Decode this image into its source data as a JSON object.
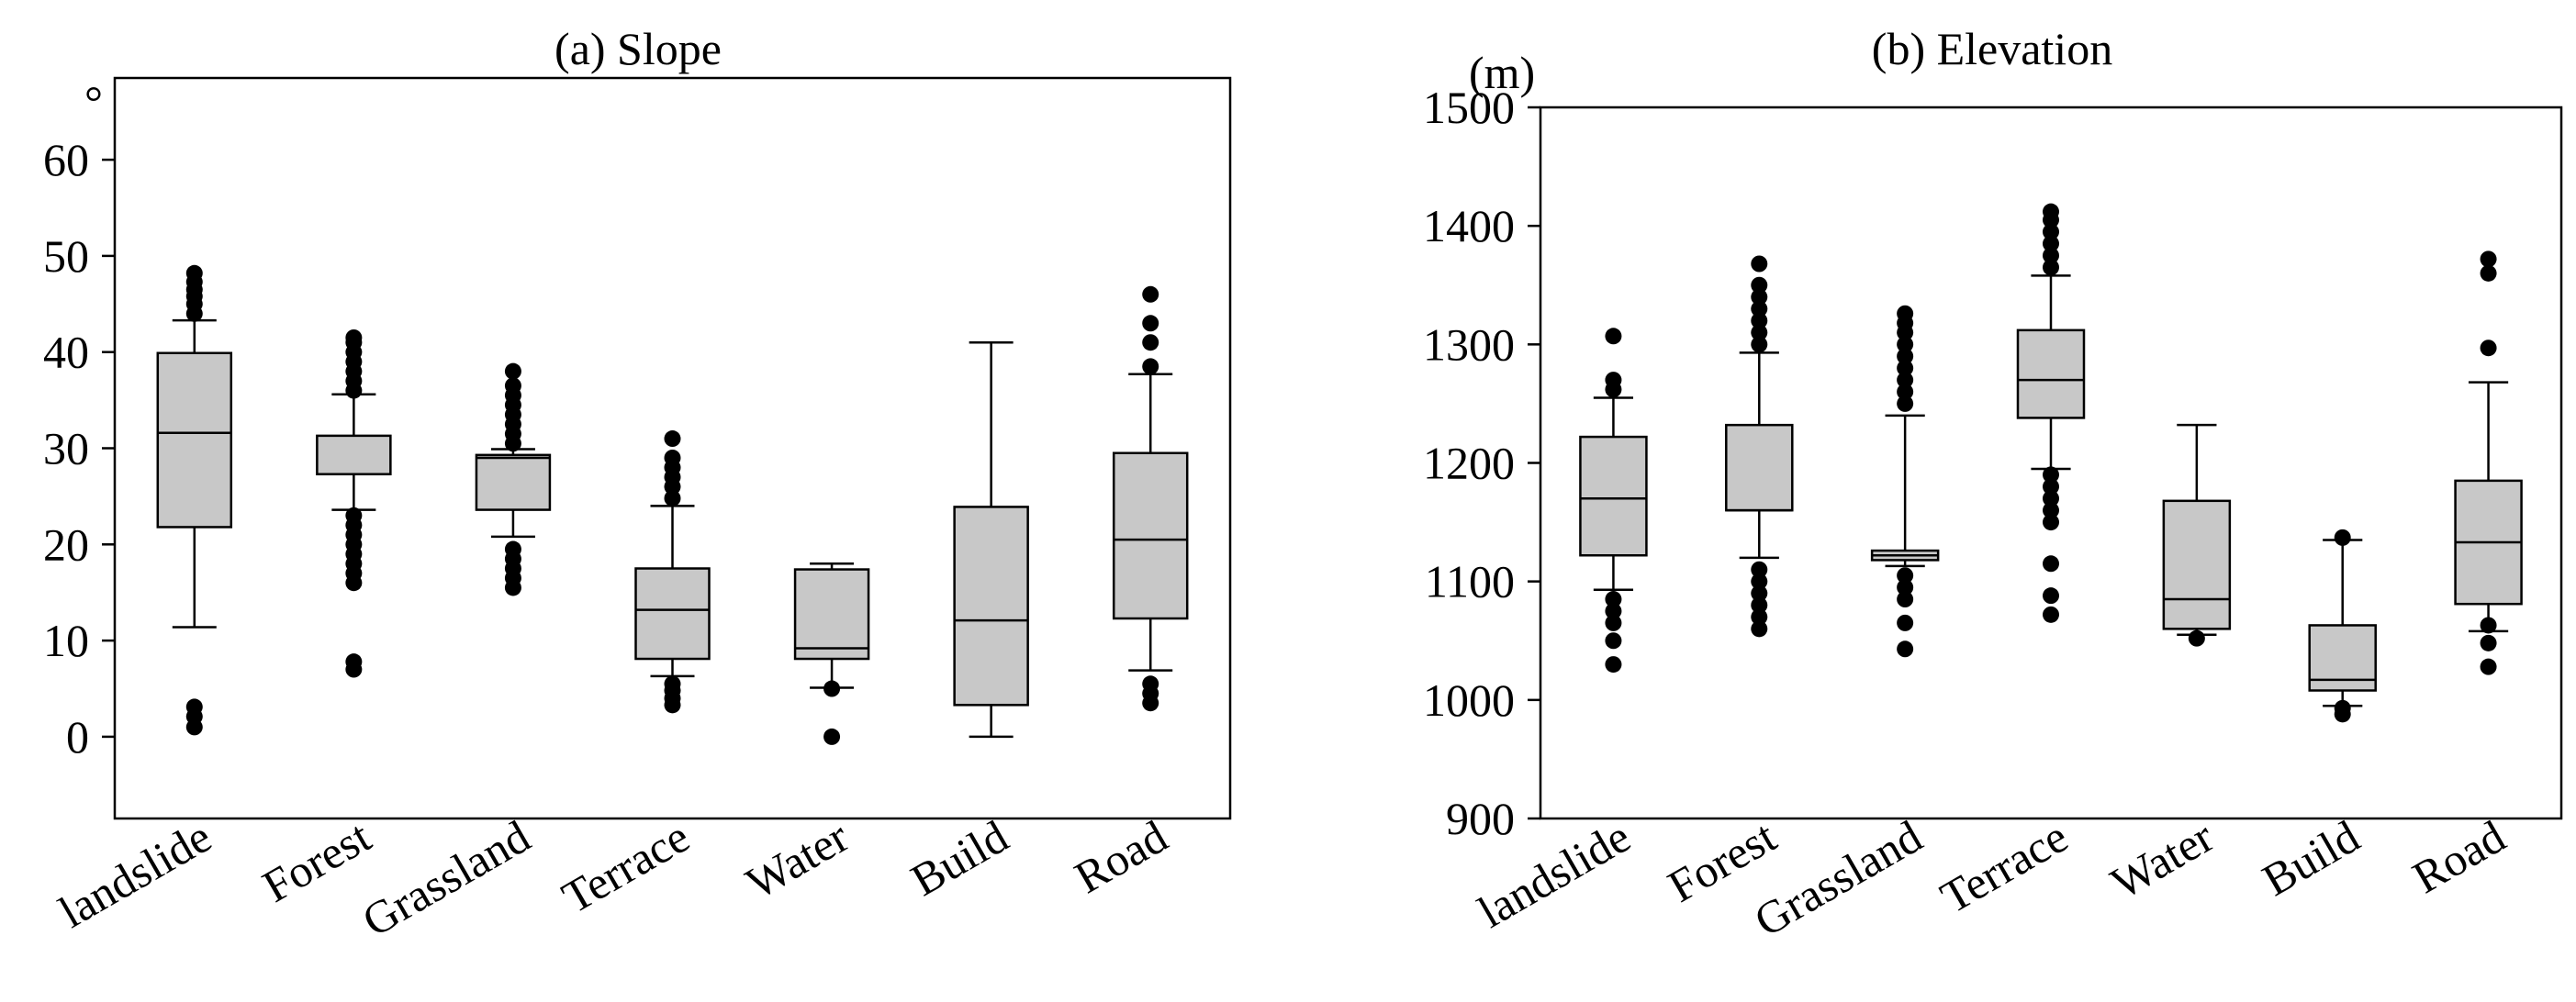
{
  "chart_data": [
    {
      "type": "box",
      "title": "(a) Slope",
      "ylabel": "",
      "y_unit": "°",
      "ylim": [
        -8.5,
        68.5
      ],
      "yticks": [
        0,
        10,
        20,
        30,
        40,
        50,
        60
      ],
      "tick_labels": [
        "0",
        "10",
        "20",
        "30",
        "40",
        "50",
        "60"
      ],
      "categories": [
        "landslide",
        "Forest",
        "Grassland",
        "Terrace",
        "Water",
        "Build",
        "Road"
      ],
      "boxes": [
        {
          "q1": 21.8,
          "median": 31.6,
          "q3": 39.9,
          "whisker_low": 11.4,
          "whisker_high": 43.3,
          "outliers": [
            1.0,
            2.1,
            3.1,
            44.0,
            45.0,
            45.8,
            46.5,
            47.3,
            48.2
          ]
        },
        {
          "q1": 27.3,
          "median": 27.3,
          "q3": 31.3,
          "whisker_low": 23.6,
          "whisker_high": 35.6,
          "outliers": [
            7.0,
            7.8,
            16.0,
            17.0,
            18.0,
            19.0,
            20.0,
            21.0,
            22.0,
            23.0,
            36.0,
            37.0,
            38.0,
            39.0,
            40.0,
            41.0,
            41.5
          ]
        },
        {
          "q1": 23.6,
          "median": 29.0,
          "q3": 29.3,
          "whisker_low": 20.8,
          "whisker_high": 29.9,
          "outliers": [
            15.5,
            16.5,
            17.5,
            18.5,
            19.5,
            30.5,
            31.5,
            32.5,
            33.5,
            34.5,
            35.5,
            36.5,
            38.0
          ]
        },
        {
          "q1": 8.1,
          "median": 13.2,
          "q3": 17.5,
          "whisker_low": 6.3,
          "whisker_high": 24.0,
          "outliers": [
            3.3,
            4.0,
            4.8,
            5.5,
            24.8,
            26.0,
            27.0,
            28.0,
            29.0,
            31.0
          ]
        },
        {
          "q1": 8.1,
          "median": 9.2,
          "q3": 17.4,
          "whisker_low": 5.1,
          "whisker_high": 18.0,
          "outliers": [
            0.0,
            5.0
          ]
        },
        {
          "q1": 3.3,
          "median": 12.1,
          "q3": 23.9,
          "whisker_low": 0.0,
          "whisker_high": 41.0,
          "outliers": []
        },
        {
          "q1": 12.3,
          "median": 20.5,
          "q3": 29.5,
          "whisker_low": 6.9,
          "whisker_high": 37.7,
          "outliers": [
            3.5,
            4.5,
            5.5,
            38.5,
            41.0,
            43.0,
            46.0
          ]
        }
      ]
    },
    {
      "type": "box",
      "title": "(b) Elevation",
      "ylabel": "",
      "y_unit": "(m)",
      "ylim": [
        900,
        1500
      ],
      "yticks": [
        900,
        1000,
        1100,
        1200,
        1300,
        1400,
        1500
      ],
      "tick_labels": [
        "900",
        "1000",
        "1100",
        "1200",
        "1300",
        "1400",
        "1500"
      ],
      "categories": [
        "landslide",
        "Forest",
        "Grassland",
        "Terrace",
        "Water",
        "Build",
        "Road"
      ],
      "boxes": [
        {
          "q1": 1122,
          "median": 1170,
          "q3": 1222,
          "whisker_low": 1093,
          "whisker_high": 1255,
          "outliers": [
            1030,
            1050,
            1065,
            1075,
            1085,
            1262,
            1270,
            1307
          ]
        },
        {
          "q1": 1160,
          "median": 1160,
          "q3": 1232,
          "whisker_low": 1120,
          "whisker_high": 1293,
          "outliers": [
            1060,
            1070,
            1080,
            1090,
            1100,
            1110,
            1300,
            1310,
            1320,
            1330,
            1340,
            1350,
            1368
          ]
        },
        {
          "q1": 1118,
          "median": 1122,
          "q3": 1126,
          "whisker_low": 1113,
          "whisker_high": 1240,
          "outliers": [
            1043,
            1065,
            1085,
            1095,
            1105,
            1250,
            1260,
            1270,
            1280,
            1290,
            1300,
            1310,
            1318,
            1326
          ]
        },
        {
          "q1": 1238,
          "median": 1270,
          "q3": 1312,
          "whisker_low": 1195,
          "whisker_high": 1358,
          "outliers": [
            1072,
            1088,
            1115,
            1150,
            1160,
            1170,
            1180,
            1190,
            1365,
            1375,
            1385,
            1395,
            1405,
            1412
          ]
        },
        {
          "q1": 1060,
          "median": 1085,
          "q3": 1168,
          "whisker_low": 1055,
          "whisker_high": 1232,
          "outliers": [
            1052
          ]
        },
        {
          "q1": 1008,
          "median": 1017,
          "q3": 1063,
          "whisker_low": 995,
          "whisker_high": 1135,
          "outliers": [
            988,
            993,
            1137
          ]
        },
        {
          "q1": 1081,
          "median": 1133,
          "q3": 1185,
          "whisker_low": 1058,
          "whisker_high": 1268,
          "outliers": [
            1028,
            1048,
            1063,
            1297,
            1360,
            1372
          ]
        }
      ]
    }
  ],
  "style": {
    "box_fill": "#c8c8c8",
    "line_color": "#000000",
    "outlier_color": "#000000",
    "background": "#ffffff"
  }
}
